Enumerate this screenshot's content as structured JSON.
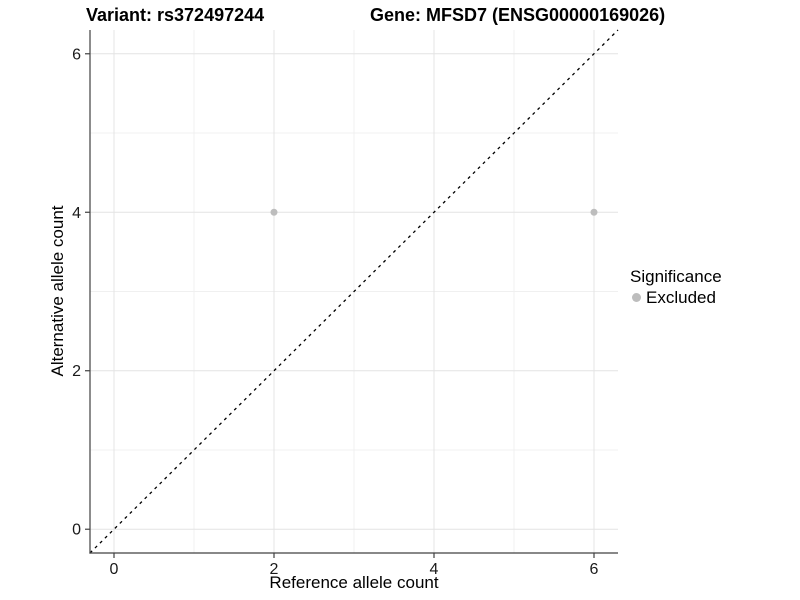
{
  "chart_data": {
    "type": "scatter",
    "title_left": "Variant: rs372497244",
    "title_right": "Gene: MFSD7 (ENSG00000169026)",
    "xlabel": "Reference allele count",
    "ylabel": "Alternative allele count",
    "xlim": [
      -0.3,
      6.3
    ],
    "ylim": [
      -0.3,
      6.3
    ],
    "x_ticks": [
      0,
      2,
      4,
      6
    ],
    "y_ticks": [
      0,
      2,
      4,
      6
    ],
    "x_minor_ticks": [
      1,
      3,
      5
    ],
    "y_minor_ticks": [
      1,
      3,
      5
    ],
    "grid": {
      "major": true,
      "minor": true
    },
    "series": [
      {
        "name": "Excluded",
        "color": "#bdbdbd",
        "points": [
          [
            2,
            4
          ],
          [
            6,
            4
          ]
        ]
      }
    ],
    "identity_line": {
      "style": "dashed",
      "color": "#000000",
      "from": [
        -0.3,
        -0.3
      ],
      "to": [
        6.3,
        6.3
      ]
    },
    "legend": {
      "title": "Significance",
      "position": "right",
      "items": [
        {
          "label": "Excluded",
          "color": "#bdbdbd"
        }
      ]
    },
    "colors": {
      "grid_major": "#e4e4e4",
      "grid_minor": "#f0f0f0",
      "axis": "#404040",
      "tick_text": "#1a1a1a",
      "background": "#ffffff"
    }
  }
}
